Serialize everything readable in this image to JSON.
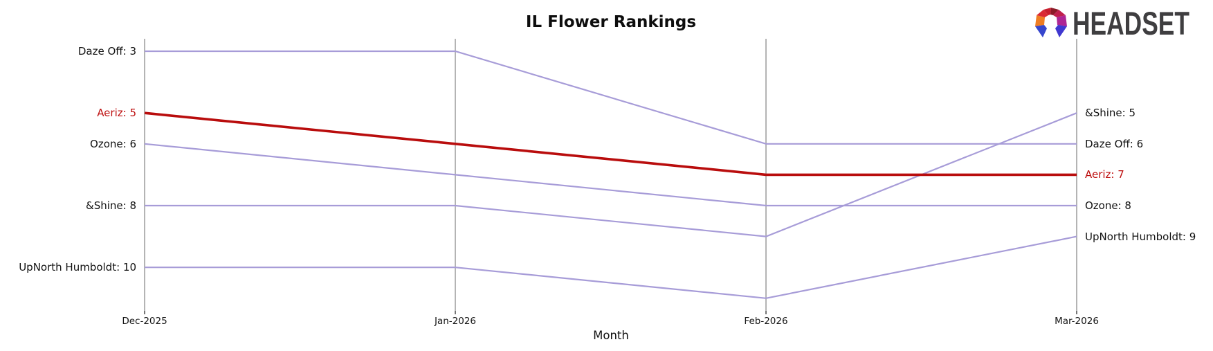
{
  "header": {
    "logo_text": "HEADSET"
  },
  "chart_data": {
    "type": "line",
    "subtype": "bump-ranking",
    "title": "IL Flower Rankings",
    "xlabel": "Month",
    "categories": [
      "Dec-2025",
      "Jan-2026",
      "Feb-2026",
      "Mar-2026"
    ],
    "series": [
      {
        "name": "Daze Off",
        "values": [
          3,
          3,
          6,
          6
        ],
        "emphasis": false
      },
      {
        "name": "Aeriz",
        "values": [
          5,
          6,
          7,
          7
        ],
        "emphasis": true
      },
      {
        "name": "Ozone",
        "values": [
          6,
          7,
          8,
          8
        ],
        "emphasis": false
      },
      {
        "name": "&Shine",
        "values": [
          8,
          8,
          9,
          5
        ],
        "emphasis": false
      },
      {
        "name": "UpNorth Humboldt",
        "values": [
          10,
          10,
          11,
          9
        ],
        "emphasis": false
      }
    ],
    "left_labels": [
      {
        "text": "Daze Off: 3",
        "rank": 3,
        "highlight": false
      },
      {
        "text": "Aeriz: 5",
        "rank": 5,
        "highlight": true
      },
      {
        "text": "Ozone: 6",
        "rank": 6,
        "highlight": false
      },
      {
        "text": "&Shine: 8",
        "rank": 8,
        "highlight": false
      },
      {
        "text": "UpNorth Humboldt: 10",
        "rank": 10,
        "highlight": false
      }
    ],
    "right_labels": [
      {
        "text": "&Shine: 5",
        "rank": 5,
        "highlight": false
      },
      {
        "text": "Daze Off: 6",
        "rank": 6,
        "highlight": false
      },
      {
        "text": "Aeriz: 7",
        "rank": 7,
        "highlight": true
      },
      {
        "text": "Ozone: 8",
        "rank": 8,
        "highlight": false
      },
      {
        "text": "UpNorth Humboldt: 9",
        "rank": 9,
        "highlight": false
      }
    ],
    "rank_axis": {
      "min": 3,
      "max": 11,
      "inverted": true,
      "lower_is_better": true
    },
    "grid": "vertical-only",
    "legend": "inline-edge-labels",
    "colors": {
      "line": "#a79cd8",
      "highlight": "#b90d0d",
      "highlight_text": "#bd0d0d",
      "grid": "#b4b4b4",
      "tick": "#1a1a1a",
      "text": "#121212",
      "logo_text": "#3f3e40"
    }
  }
}
